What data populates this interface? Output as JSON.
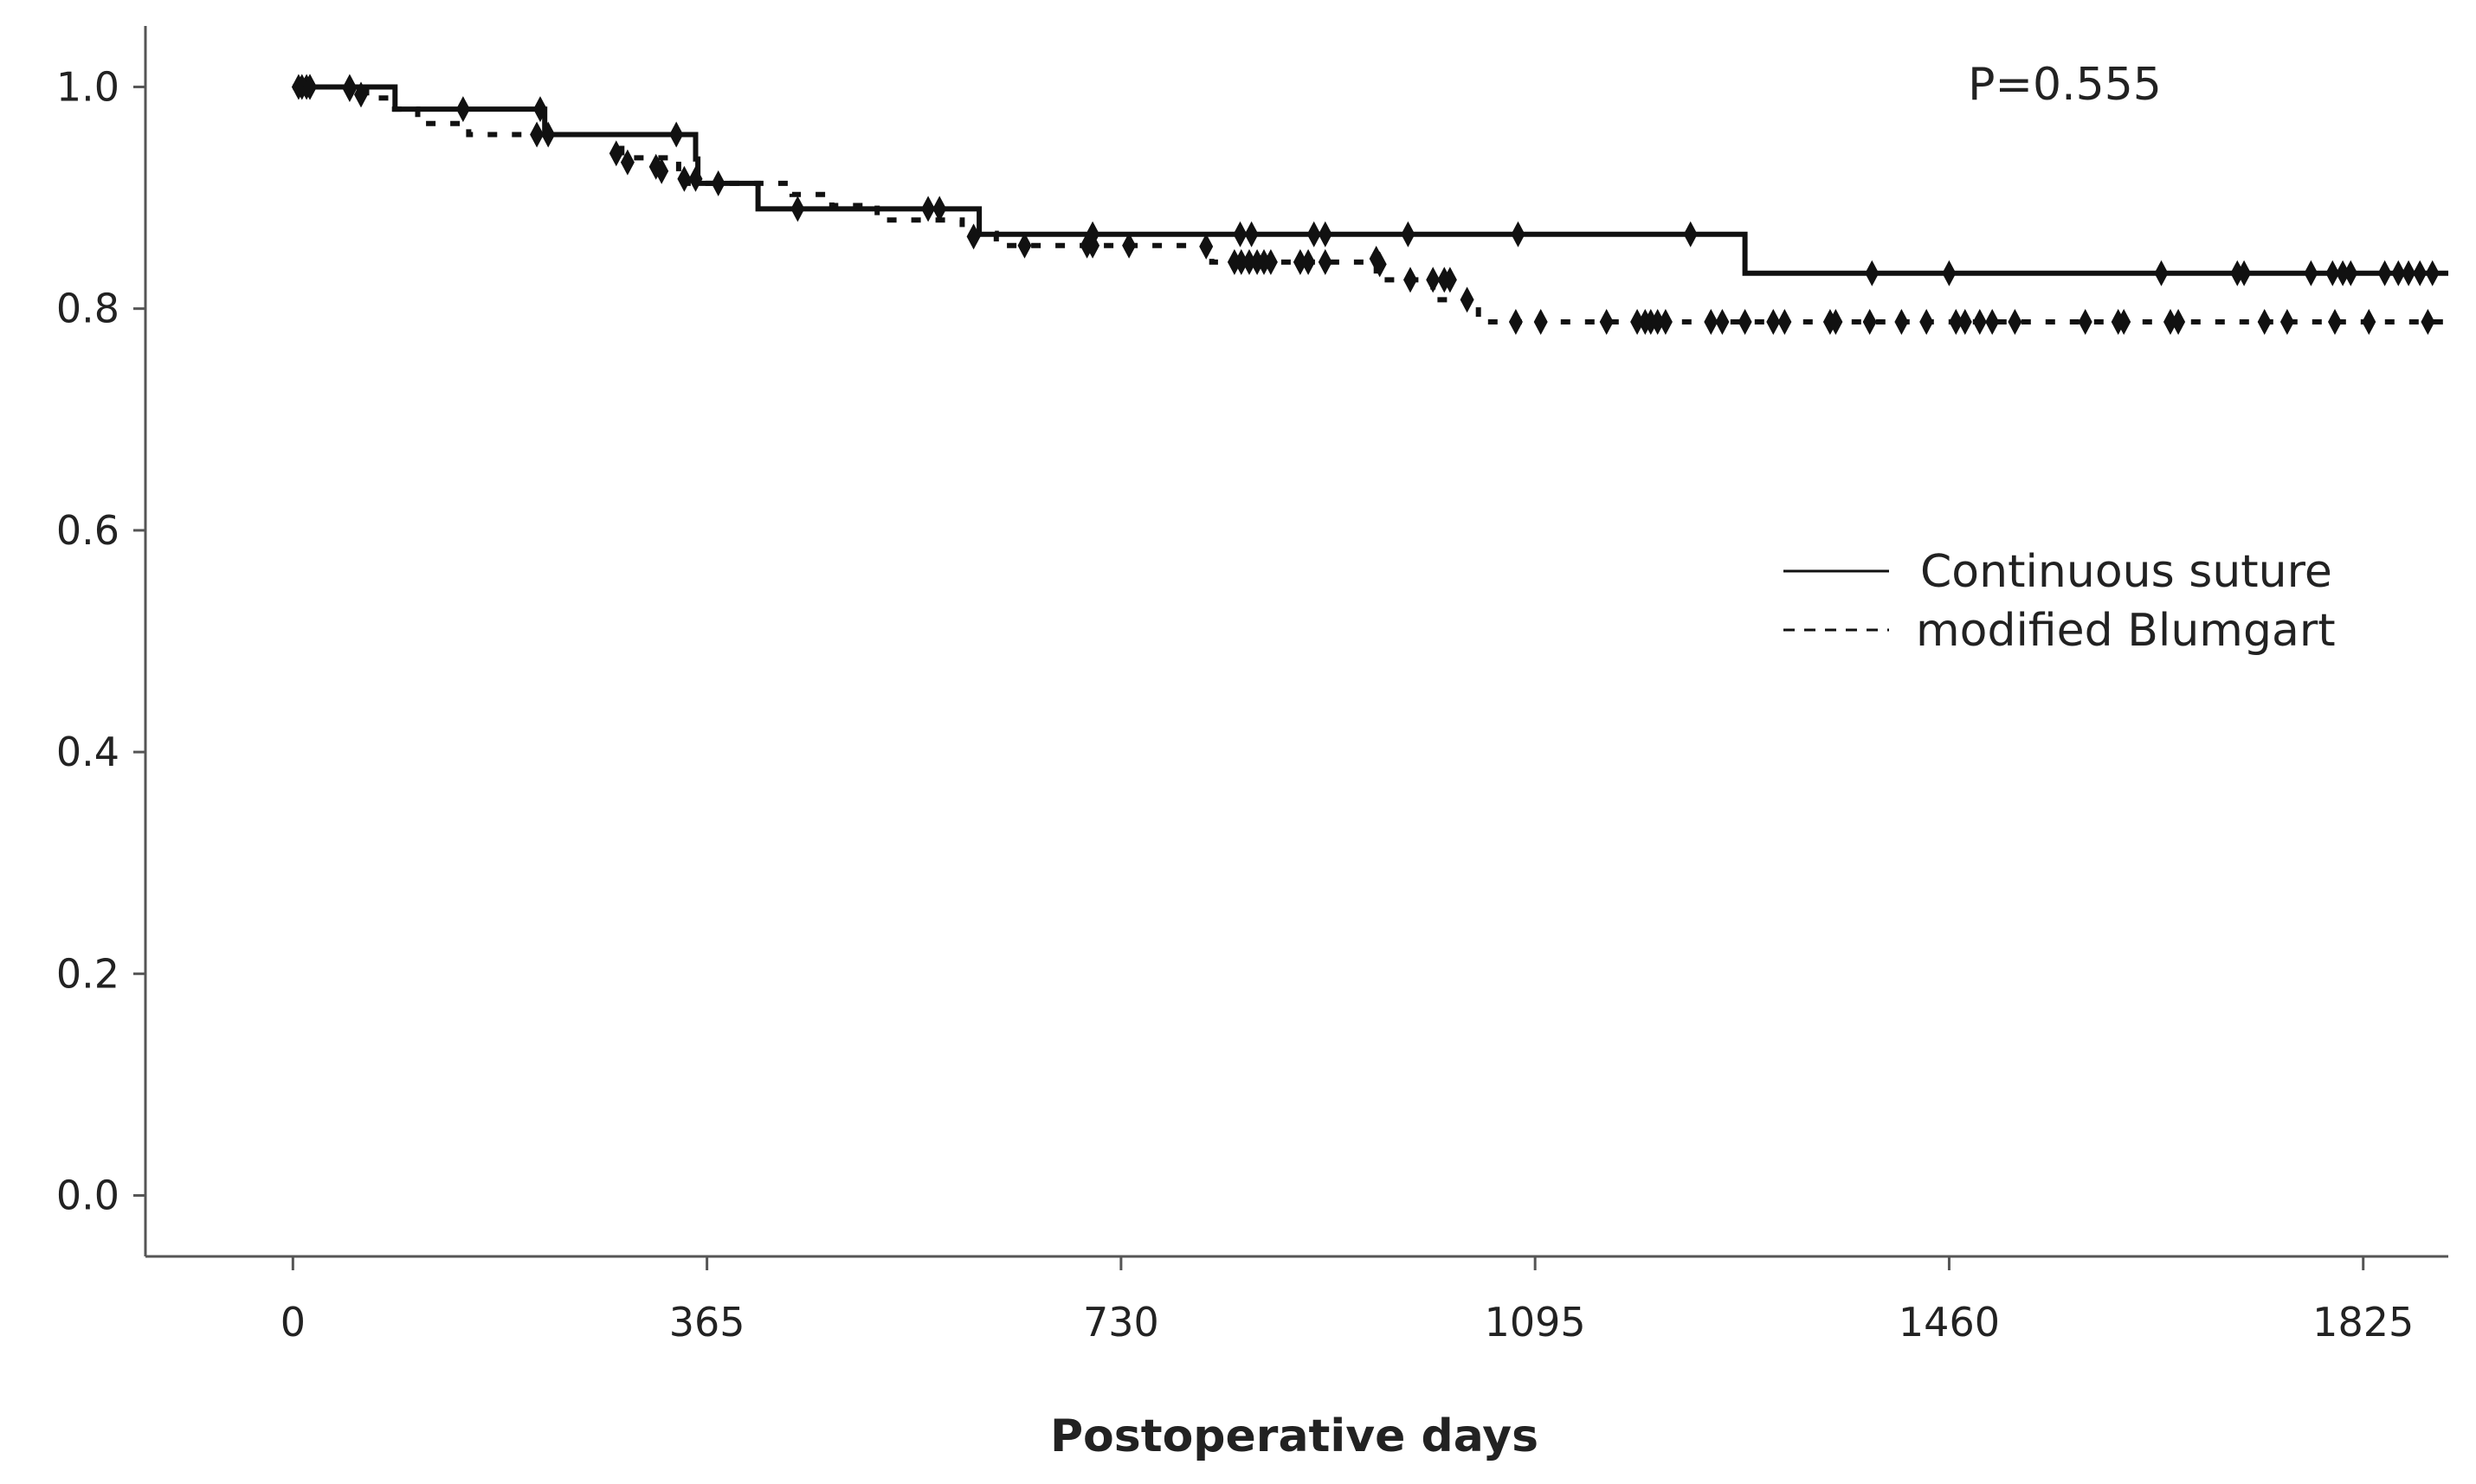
{
  "chart_data": {
    "type": "line",
    "subtype": "kaplan-meier step",
    "title": "",
    "xlabel": "Postoperative days",
    "ylabel": "",
    "xlim": [
      -130,
      1900
    ],
    "ylim": [
      -0.055,
      1.055
    ],
    "x_ticks": [
      0,
      365,
      730,
      1095,
      1460,
      1825
    ],
    "x_tick_labels": [
      "0",
      "365",
      "730",
      "1095",
      "1460",
      "1825"
    ],
    "y_ticks": [
      0.0,
      0.2,
      0.4,
      0.6,
      0.8,
      1.0
    ],
    "y_tick_labels": [
      "0.0",
      "0.2",
      "0.4",
      "0.6",
      "0.8",
      "1.0"
    ],
    "grid": false,
    "legend_position": "right",
    "annotation": "P=0.555",
    "series": [
      {
        "name": "Continuous suture",
        "style": "solid",
        "steps": [
          [
            0,
            1.0
          ],
          [
            90,
            0.98
          ],
          [
            222,
            0.957
          ],
          [
            355,
            0.935
          ],
          [
            357,
            0.913
          ],
          [
            410,
            0.89
          ],
          [
            605,
            0.867
          ],
          [
            1280,
            0.832
          ],
          [
            1900,
            0.832
          ]
        ],
        "censored": [
          [
            5,
            1.0
          ],
          [
            12,
            1.0
          ],
          [
            15,
            1.0
          ],
          [
            50,
            1.0
          ],
          [
            150,
            0.98
          ],
          [
            218,
            0.98
          ],
          [
            338,
            0.957
          ],
          [
            560,
            0.89
          ],
          [
            570,
            0.89
          ],
          [
            705,
            0.867
          ],
          [
            835,
            0.867
          ],
          [
            845,
            0.867
          ],
          [
            900,
            0.867
          ],
          [
            910,
            0.867
          ],
          [
            983,
            0.867
          ],
          [
            1080,
            0.867
          ],
          [
            1232,
            0.867
          ],
          [
            1392,
            0.832
          ],
          [
            1460,
            0.832
          ],
          [
            1647,
            0.832
          ],
          [
            1714,
            0.832
          ],
          [
            1720,
            0.832
          ],
          [
            1779,
            0.832
          ],
          [
            1798,
            0.832
          ],
          [
            1807,
            0.832
          ],
          [
            1814,
            0.832
          ],
          [
            1844,
            0.832
          ],
          [
            1856,
            0.832
          ],
          [
            1865,
            0.832
          ],
          [
            1875,
            0.832
          ],
          [
            1886,
            0.832
          ]
        ]
      },
      {
        "name": "modified Blumgart",
        "style": "dashed",
        "steps": [
          [
            0,
            1.0
          ],
          [
            65,
            0.99
          ],
          [
            85,
            0.98
          ],
          [
            110,
            0.967
          ],
          [
            155,
            0.957
          ],
          [
            240,
            0.957
          ],
          [
            290,
            0.936
          ],
          [
            340,
            0.913
          ],
          [
            420,
            0.913
          ],
          [
            440,
            0.903
          ],
          [
            475,
            0.893
          ],
          [
            515,
            0.88
          ],
          [
            590,
            0.868
          ],
          [
            620,
            0.857
          ],
          [
            810,
            0.842
          ],
          [
            955,
            0.826
          ],
          [
            1005,
            0.808
          ],
          [
            1045,
            0.788
          ],
          [
            1900,
            0.788
          ]
        ],
        "censored": [
          [
            8,
            1.0
          ],
          [
            15,
            1.0
          ],
          [
            50,
            0.998
          ],
          [
            60,
            0.993
          ],
          [
            215,
            0.957
          ],
          [
            225,
            0.957
          ],
          [
            285,
            0.94
          ],
          [
            295,
            0.932
          ],
          [
            320,
            0.928
          ],
          [
            325,
            0.924
          ],
          [
            345,
            0.917
          ],
          [
            355,
            0.917
          ],
          [
            375,
            0.913
          ],
          [
            445,
            0.89
          ],
          [
            600,
            0.865
          ],
          [
            645,
            0.857
          ],
          [
            700,
            0.857
          ],
          [
            705,
            0.857
          ],
          [
            737,
            0.857
          ],
          [
            805,
            0.856
          ],
          [
            830,
            0.842
          ],
          [
            836,
            0.842
          ],
          [
            843,
            0.842
          ],
          [
            850,
            0.842
          ],
          [
            856,
            0.842
          ],
          [
            862,
            0.842
          ],
          [
            888,
            0.842
          ],
          [
            895,
            0.842
          ],
          [
            910,
            0.842
          ],
          [
            955,
            0.845
          ],
          [
            958,
            0.84
          ],
          [
            985,
            0.826
          ],
          [
            1005,
            0.826
          ],
          [
            1015,
            0.826
          ],
          [
            1020,
            0.826
          ],
          [
            1035,
            0.808
          ],
          [
            1078,
            0.788
          ],
          [
            1100,
            0.788
          ],
          [
            1158,
            0.788
          ],
          [
            1185,
            0.788
          ],
          [
            1192,
            0.788
          ],
          [
            1197,
            0.788
          ],
          [
            1203,
            0.788
          ],
          [
            1210,
            0.788
          ],
          [
            1250,
            0.788
          ],
          [
            1260,
            0.788
          ],
          [
            1280,
            0.788
          ],
          [
            1305,
            0.788
          ],
          [
            1315,
            0.788
          ],
          [
            1355,
            0.788
          ],
          [
            1360,
            0.788
          ],
          [
            1390,
            0.788
          ],
          [
            1418,
            0.788
          ],
          [
            1440,
            0.788
          ],
          [
            1466,
            0.788
          ],
          [
            1474,
            0.788
          ],
          [
            1487,
            0.788
          ],
          [
            1498,
            0.788
          ],
          [
            1518,
            0.788
          ],
          [
            1580,
            0.788
          ],
          [
            1609,
            0.788
          ],
          [
            1614,
            0.788
          ],
          [
            1655,
            0.788
          ],
          [
            1662,
            0.788
          ],
          [
            1738,
            0.788
          ],
          [
            1758,
            0.788
          ],
          [
            1800,
            0.788
          ],
          [
            1830,
            0.788
          ],
          [
            1882,
            0.788
          ]
        ]
      }
    ]
  }
}
